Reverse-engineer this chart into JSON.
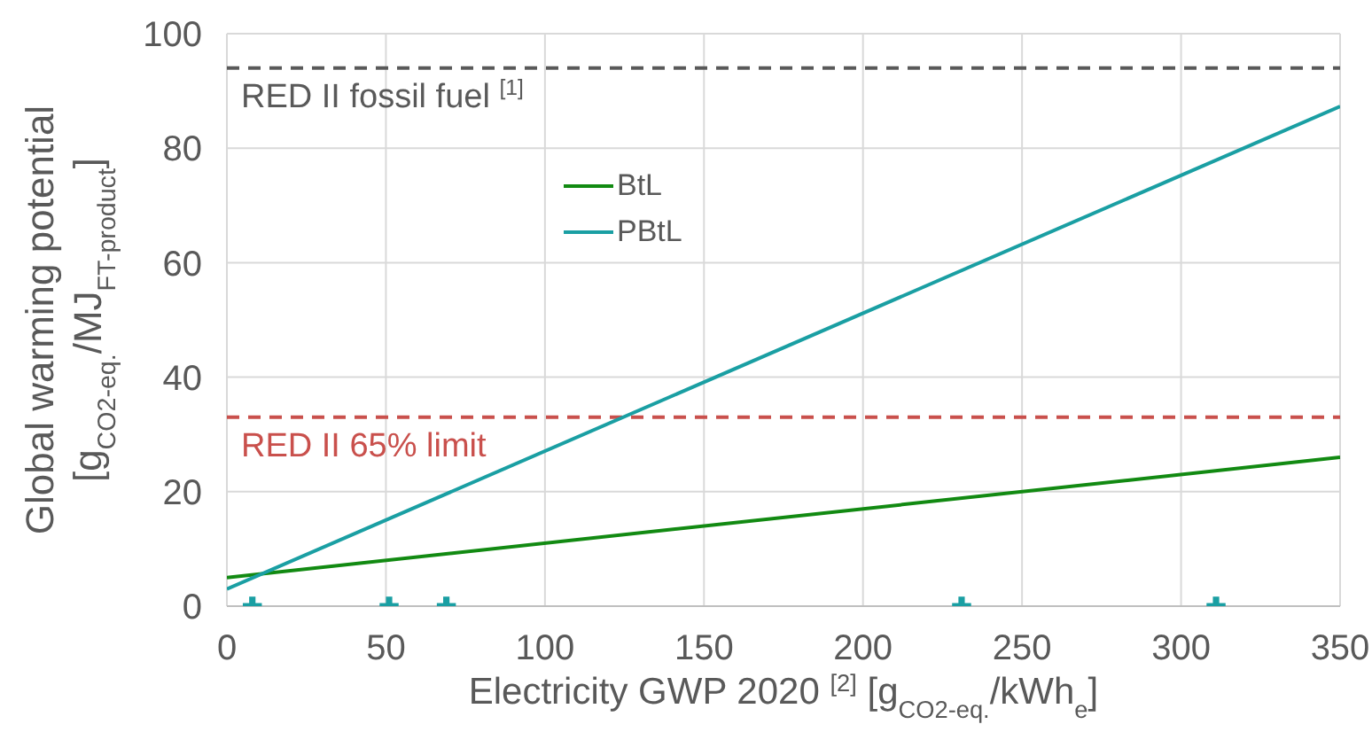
{
  "chart_data": {
    "type": "line",
    "xlabel": "Electricity GWP 2020 $^{[2]}$ [g$_{CO2-eq.}$/kWh$_{e}$]",
    "ylabel": "Global warming potential\n[g$_{CO2-eq.}$/MJ$_{FT-product}$]",
    "xlim": [
      0,
      350
    ],
    "xticks": [
      0,
      50,
      100,
      150,
      200,
      250,
      300,
      350
    ],
    "ylim": [
      0,
      100
    ],
    "yticks": [
      0,
      20,
      40,
      60,
      80,
      100
    ],
    "grid": true,
    "legend": "top left",
    "marker": "none",
    "line_style": "solid",
    "series": [
      {
        "name": "BtL",
        "color": "#128a12",
        "x": [
          0,
          350
        ],
        "values": [
          5,
          26
        ]
      },
      {
        "name": "PBtL",
        "color": "#1a9fa3",
        "x": [
          0,
          350
        ],
        "values": [
          3,
          87.3
        ]
      },
      {
        "type": "scatter",
        "color": "#1a9fa3",
        "marker": "cross",
        "x": [
          8,
          51,
          69,
          231,
          311
        ],
        "values": [
          0,
          0,
          0,
          0,
          0
        ]
      }
    ],
    "ref_lines": [
      {
        "axis": "y",
        "value": 94,
        "label": "RED II fossil fuel $^{[1]}$",
        "color": "#595959",
        "line_style": "dashed"
      },
      {
        "axis": "y",
        "value": 33,
        "label": "RED II 65% limit",
        "color": "#c9504c",
        "line_style": "dashed"
      }
    ]
  }
}
